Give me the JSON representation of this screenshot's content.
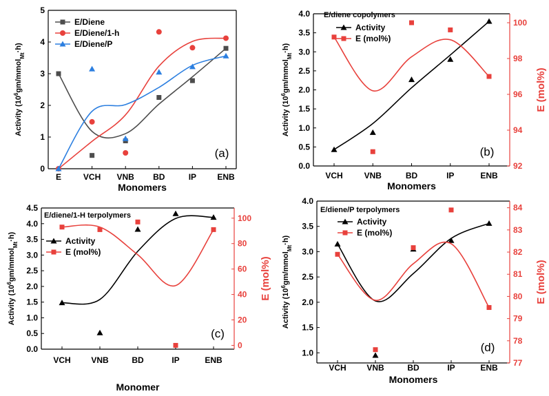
{
  "chart_data": [
    {
      "type": "scatter",
      "panel_label": "(a)",
      "title": "",
      "categories": [
        "E",
        "VCH",
        "VNB",
        "BD",
        "IP",
        "ENB"
      ],
      "xlabel": "Monomers",
      "ylabel": "Activity (10^6gm/mmol_Mt·h)",
      "ylabel_parts": {
        "pre": "Activity (10",
        "sup": "6",
        "mid": "gm/mmol",
        "sub": "Mt",
        "post": "·h)"
      },
      "ylim": [
        0,
        5
      ],
      "yticks": [
        "0",
        "1",
        "2",
        "3",
        "4",
        "5"
      ],
      "legend_position": "top-left",
      "series": [
        {
          "name": "E/Diene",
          "color": "#4d4d4d",
          "marker": "square",
          "values": [
            3.0,
            0.42,
            0.88,
            2.25,
            2.78,
            3.8
          ]
        },
        {
          "name": "E/Diene/1-h",
          "color": "#e8413c",
          "marker": "circle",
          "values": [
            0.0,
            1.48,
            0.5,
            4.32,
            3.82,
            4.12
          ]
        },
        {
          "name": "E/Diene/P",
          "color": "#2c7fe0",
          "marker": "triangle",
          "values": [
            0.0,
            3.15,
            0.95,
            3.05,
            3.22,
            3.56
          ]
        }
      ]
    },
    {
      "type": "scatter",
      "panel_label": "(b)",
      "title": "E/diene copolymers",
      "categories": [
        "VCH",
        "VNB",
        "BD",
        "IP",
        "ENB"
      ],
      "xlabel": "Monomers",
      "ylabel": "Activity (10^6gm/mmol_Mt·h)",
      "ylabel_parts": {
        "pre": "Activity (10",
        "sup": "6",
        "mid": "gm/mmol",
        "sub": "Mt",
        "post": "·h)"
      },
      "ylim": [
        0,
        4.0
      ],
      "yticks": [
        "0.0",
        "0.5",
        "1.0",
        "1.5",
        "2.0",
        "2.5",
        "3.0",
        "3.5",
        "4.0"
      ],
      "y2label": "E (mol%)",
      "y2lim": [
        92,
        100.5
      ],
      "y2ticks": [
        "92",
        "94",
        "96",
        "98",
        "100"
      ],
      "legend_position": "top-left",
      "series": [
        {
          "name": "Activity",
          "axis": "left",
          "color": "#000000",
          "marker": "triangle",
          "values": [
            0.43,
            0.88,
            2.27,
            2.8,
            3.8
          ]
        },
        {
          "name": "E (mol%)",
          "axis": "right",
          "color": "#e8413c",
          "marker": "square",
          "values": [
            99.2,
            92.8,
            100.0,
            99.6,
            97.0
          ]
        }
      ]
    },
    {
      "type": "scatter",
      "panel_label": "(c)",
      "title": "E/diene/1-H terpolymers",
      "categories": [
        "VCH",
        "VNB",
        "BD",
        "IP",
        "ENB"
      ],
      "xlabel": "Monomer",
      "ylabel": "Activity (10^6gm/mmol_Mt·h)",
      "ylabel_parts": {
        "pre": "Activity (10",
        "sup": "6",
        "mid": "gm/mmol",
        "sub": "Mt",
        "post": "·h)"
      },
      "ylim": [
        0,
        4.5
      ],
      "yticks": [
        "0.0",
        "0.5",
        "1.0",
        "1.5",
        "2.0",
        "2.5",
        "3.0",
        "3.5",
        "4.0",
        "4.5"
      ],
      "y2label": "E (mol%)",
      "y2lim": [
        -3,
        108
      ],
      "y2ticks": [
        "0",
        "20",
        "40",
        "60",
        "80",
        "100"
      ],
      "legend_position": "center-left",
      "series": [
        {
          "name": "Activity",
          "axis": "left",
          "color": "#000000",
          "marker": "triangle",
          "values": [
            1.48,
            0.52,
            3.82,
            4.32,
            4.2
          ]
        },
        {
          "name": "E (mol%)",
          "axis": "right",
          "color": "#e8413c",
          "marker": "square",
          "values": [
            93,
            91,
            97,
            0,
            91
          ]
        }
      ]
    },
    {
      "type": "scatter",
      "panel_label": "(d)",
      "title": "E/diene/P terpolymers",
      "categories": [
        "VCH",
        "VNB",
        "BD",
        "IP",
        "ENB"
      ],
      "xlabel": "Monomers",
      "ylabel": "Activity (10^6gm/mmol_Mt·h)",
      "ylabel_parts": {
        "pre": "Activity (10",
        "sup": "6",
        "mid": "gm/mmol",
        "sub": "Mt",
        "post": "·h)"
      },
      "ylim": [
        0.8,
        4.0
      ],
      "yticks": [
        "1.0",
        "1.5",
        "2.0",
        "2.5",
        "3.0",
        "3.5",
        "4.0"
      ],
      "y2label": "E (mol%)",
      "y2lim": [
        77,
        84.3
      ],
      "y2ticks": [
        "77",
        "78",
        "79",
        "80",
        "81",
        "82",
        "83",
        "84"
      ],
      "legend_position": "top-left",
      "series": [
        {
          "name": "Activity",
          "axis": "left",
          "color": "#000000",
          "marker": "triangle",
          "values": [
            3.15,
            0.95,
            3.05,
            3.22,
            3.56
          ]
        },
        {
          "name": "E (mol%)",
          "axis": "right",
          "color": "#e8413c",
          "marker": "square",
          "values": [
            81.9,
            77.6,
            82.2,
            83.9,
            79.5
          ]
        }
      ]
    }
  ]
}
